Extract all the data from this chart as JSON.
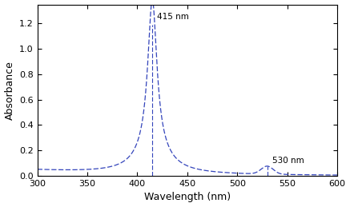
{
  "xlabel": "Wavelength (nm)",
  "ylabel": "Absorbance",
  "xlim": [
    300,
    600
  ],
  "ylim": [
    0,
    1.35
  ],
  "xticks": [
    300,
    350,
    400,
    450,
    500,
    550,
    600
  ],
  "yticks": [
    0.0,
    0.2,
    0.4,
    0.6,
    0.8,
    1.0,
    1.2
  ],
  "soret_peak_wl": 415,
  "soret_peak_abs": 1.19,
  "q_peak_wl": 530,
  "q_peak_abs": 0.065,
  "line_color": "#3344BB",
  "annotation_fontsize": 7.5,
  "label_fontsize": 9,
  "tick_fontsize": 8,
  "background_color": "#ffffff",
  "soret_lorentzian_gamma": 5.5,
  "soret_broad_sigma": 18,
  "soret_broad_amp": 0.18,
  "baseline_amp": 0.055,
  "baseline_decay": 60,
  "q_sigma": 6,
  "q_amp": 0.063
}
